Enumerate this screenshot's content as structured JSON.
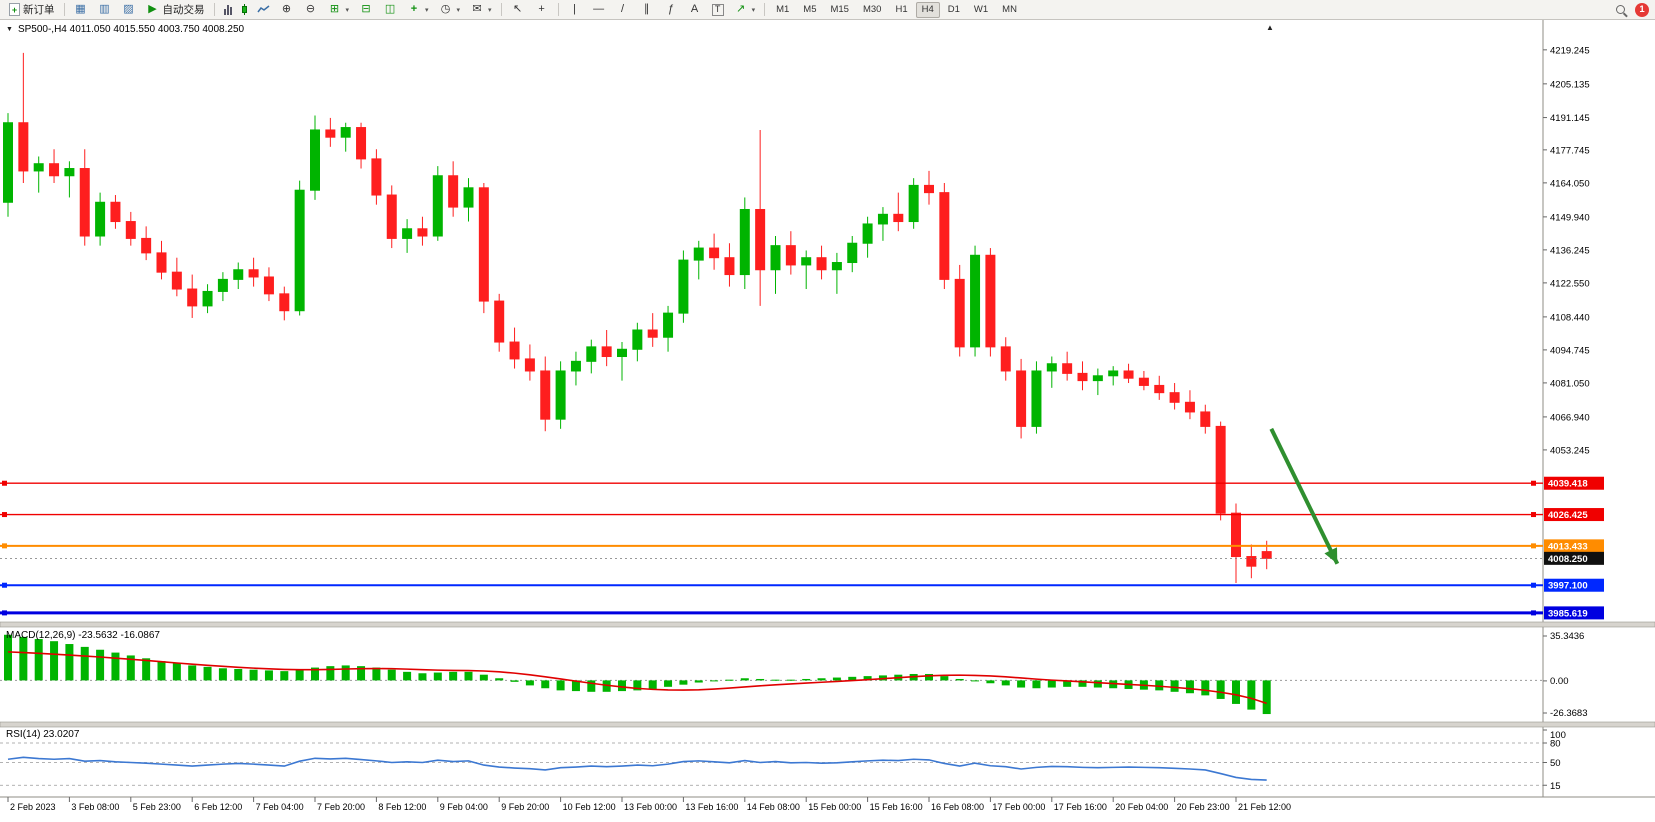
{
  "toolbar": {
    "new_order": "新订单",
    "autotrade": "自动交易",
    "timeframes": [
      "M1",
      "M5",
      "M15",
      "M30",
      "H1",
      "H4",
      "D1",
      "W1",
      "MN"
    ],
    "active_timeframe": "H4",
    "badge": "1"
  },
  "icons": {
    "plus": "+",
    "charts": "▦",
    "profiles": "▥",
    "data_window": "▨",
    "play": "▶",
    "zoom_in": "⊕",
    "zoom_out": "⊖",
    "grid": "⊞",
    "tile_h": "⊟",
    "tile_v": "◫",
    "indicator": "+",
    "clock": "◷",
    "mail": "✉",
    "cursor": "↖",
    "crosshair": "+",
    "vline": "|",
    "hline": "―",
    "trendline": "/",
    "channel": "∥",
    "fibo": "ƒ",
    "text": "A",
    "label": "T",
    "arrow_tool": "↗",
    "caret": "▾",
    "collapse": "▼",
    "end_marker": "▲"
  },
  "chart": {
    "title": "SP500-,H4 4011.050 4015.550 4003.750 4008.250",
    "symbol": "SP500-",
    "period": "H4"
  },
  "macd_panel": {
    "label": "MACD(12,26,9) -23.5632 -16.0867",
    "scale": [
      "35.3436",
      "0.00",
      "-26.3683"
    ]
  },
  "rsi_panel": {
    "label": "RSI(14) 23.0207",
    "scale": [
      "100",
      "80",
      "50",
      "15"
    ]
  },
  "chart_data": {
    "type": "candlestick",
    "title": "SP500- H4",
    "colors": {
      "bull": "#00b400",
      "bear": "#fe1e1e",
      "macd_hist": "#00b400",
      "macd_signal": "#e00000",
      "rsi_line": "#3c78d2",
      "arrow": "#2f8f2f",
      "axis_text": "#000000"
    },
    "ylim": [
      3983.5,
      4222.5
    ],
    "price_axis_ticks": [
      "4219.245",
      "4205.135",
      "4191.145",
      "4177.745",
      "4164.050",
      "4149.940",
      "4136.245",
      "4122.550",
      "4108.440",
      "4094.745",
      "4081.050",
      "4066.940",
      "4053.245"
    ],
    "x_labels": [
      "2 Feb 2023",
      "3 Feb 08:00",
      "5 Feb 23:00",
      "6 Feb 12:00",
      "7 Feb 04:00",
      "7 Feb 20:00",
      "8 Feb 12:00",
      "9 Feb 04:00",
      "9 Feb 20:00",
      "10 Feb 12:00",
      "13 Feb 00:00",
      "13 Feb 16:00",
      "14 Feb 08:00",
      "15 Feb 00:00",
      "15 Feb 16:00",
      "16 Feb 08:00",
      "17 Feb 00:00",
      "17 Feb 16:00",
      "20 Feb 04:00",
      "20 Feb 23:00",
      "21 Feb 12:00"
    ],
    "bars_per_label": 4,
    "candles": [
      [
        4156,
        4193,
        4150,
        4189
      ],
      [
        4189,
        4218,
        4164,
        4169
      ],
      [
        4169,
        4175,
        4160,
        4172
      ],
      [
        4172,
        4178,
        4164,
        4167
      ],
      [
        4167,
        4173,
        4158,
        4170
      ],
      [
        4170,
        4178,
        4138,
        4142
      ],
      [
        4142,
        4160,
        4138,
        4156
      ],
      [
        4156,
        4159,
        4145,
        4148
      ],
      [
        4148,
        4152,
        4138,
        4141
      ],
      [
        4141,
        4146,
        4132,
        4135
      ],
      [
        4135,
        4140,
        4124,
        4127
      ],
      [
        4127,
        4133,
        4117,
        4120
      ],
      [
        4120,
        4126,
        4108,
        4113
      ],
      [
        4113,
        4122,
        4110,
        4119
      ],
      [
        4119,
        4127,
        4115,
        4124
      ],
      [
        4124,
        4131,
        4120,
        4128
      ],
      [
        4128,
        4133,
        4121,
        4125
      ],
      [
        4125,
        4129,
        4115,
        4118
      ],
      [
        4118,
        4121,
        4107,
        4111
      ],
      [
        4111,
        4165,
        4109,
        4161
      ],
      [
        4161,
        4192,
        4157,
        4186
      ],
      [
        4186,
        4191,
        4179,
        4183
      ],
      [
        4183,
        4189,
        4177,
        4187
      ],
      [
        4187,
        4189,
        4170,
        4174
      ],
      [
        4174,
        4178,
        4155,
        4159
      ],
      [
        4159,
        4163,
        4137,
        4141
      ],
      [
        4141,
        4149,
        4135,
        4145
      ],
      [
        4145,
        4150,
        4138,
        4142
      ],
      [
        4142,
        4171,
        4140,
        4167
      ],
      [
        4167,
        4173,
        4150,
        4154
      ],
      [
        4154,
        4166,
        4148,
        4162
      ],
      [
        4162,
        4164,
        4110,
        4115
      ],
      [
        4115,
        4118,
        4094,
        4098
      ],
      [
        4098,
        4104,
        4087,
        4091
      ],
      [
        4091,
        4097,
        4082,
        4086
      ],
      [
        4086,
        4092,
        4061,
        4066
      ],
      [
        4066,
        4090,
        4062,
        4086
      ],
      [
        4086,
        4094,
        4080,
        4090
      ],
      [
        4090,
        4099,
        4085,
        4096
      ],
      [
        4096,
        4103,
        4088,
        4092
      ],
      [
        4092,
        4098,
        4082,
        4095
      ],
      [
        4095,
        4106,
        4090,
        4103
      ],
      [
        4103,
        4110,
        4096,
        4100
      ],
      [
        4100,
        4113,
        4094,
        4110
      ],
      [
        4110,
        4136,
        4106,
        4132
      ],
      [
        4132,
        4140,
        4124,
        4137
      ],
      [
        4137,
        4143,
        4128,
        4133
      ],
      [
        4133,
        4139,
        4121,
        4126
      ],
      [
        4126,
        4158,
        4120,
        4153
      ],
      [
        4153,
        4186,
        4113,
        4128
      ],
      [
        4128,
        4142,
        4118,
        4138
      ],
      [
        4138,
        4144,
        4126,
        4130
      ],
      [
        4130,
        4136,
        4120,
        4133
      ],
      [
        4133,
        4138,
        4124,
        4128
      ],
      [
        4128,
        4135,
        4118,
        4131
      ],
      [
        4131,
        4142,
        4127,
        4139
      ],
      [
        4139,
        4150,
        4133,
        4147
      ],
      [
        4147,
        4154,
        4140,
        4151
      ],
      [
        4151,
        4160,
        4144,
        4148
      ],
      [
        4148,
        4166,
        4145,
        4163
      ],
      [
        4163,
        4169,
        4155,
        4160
      ],
      [
        4160,
        4164,
        4120,
        4124
      ],
      [
        4124,
        4130,
        4092,
        4096
      ],
      [
        4096,
        4138,
        4092,
        4134
      ],
      [
        4134,
        4137,
        4092,
        4096
      ],
      [
        4096,
        4100,
        4082,
        4086
      ],
      [
        4086,
        4091,
        4058,
        4063
      ],
      [
        4063,
        4090,
        4060,
        4086
      ],
      [
        4086,
        4092,
        4079,
        4089
      ],
      [
        4089,
        4094,
        4082,
        4085
      ],
      [
        4085,
        4090,
        4078,
        4082
      ],
      [
        4082,
        4087,
        4076,
        4084
      ],
      [
        4084,
        4088,
        4080,
        4086
      ],
      [
        4086,
        4089,
        4081,
        4083
      ],
      [
        4083,
        4086,
        4078,
        4080
      ],
      [
        4080,
        4084,
        4074,
        4077
      ],
      [
        4077,
        4081,
        4070,
        4073
      ],
      [
        4073,
        4078,
        4066,
        4069
      ],
      [
        4069,
        4072,
        4060,
        4063
      ],
      [
        4063,
        4065,
        4024,
        4027
      ],
      [
        4027,
        4031,
        3998,
        4009
      ],
      [
        4009,
        4014,
        4000,
        4005
      ],
      [
        4011.05,
        4015.55,
        4003.75,
        4008.25
      ]
    ],
    "hlines": [
      {
        "price": 4039.418,
        "label": "4039.418",
        "color": "#f00000",
        "width": 1.4
      },
      {
        "price": 4026.425,
        "label": "4026.425",
        "color": "#f00000",
        "width": 1.4
      },
      {
        "price": 4013.433,
        "label": "4013.433",
        "color": "#ff8c00",
        "width": 2
      },
      {
        "price": 3997.1,
        "label": "3997.100",
        "color": "#0028ff",
        "width": 2
      },
      {
        "price": 3985.619,
        "label": "3985.619",
        "color": "#0000e0",
        "width": 3
      }
    ],
    "current_price": {
      "value": 4008.25,
      "label": "4008.250",
      "bg": "#101010"
    },
    "arrow": {
      "from": {
        "bar": 82.3,
        "price": 4062
      },
      "to": {
        "bar": 86.6,
        "price": 4006
      }
    },
    "macd": {
      "range": [
        -26.3683,
        35.3436
      ],
      "histogram": [
        32,
        30.5,
        29,
        27.5,
        25.5,
        23.5,
        21.5,
        19.5,
        17.5,
        15.5,
        13.5,
        12,
        10.5,
        9.5,
        8.5,
        8,
        7.5,
        7,
        6.5,
        7.5,
        9,
        10,
        10.5,
        10,
        9,
        7.5,
        6,
        5,
        5.5,
        6,
        6,
        4,
        1.5,
        -1,
        -3.5,
        -5.5,
        -7,
        -7.5,
        -8,
        -8,
        -7.5,
        -7,
        -6,
        -4.5,
        -3,
        -1.5,
        -0.5,
        0.5,
        1.5,
        1,
        0.5,
        0.5,
        1,
        1.5,
        2,
        2.5,
        3,
        3.5,
        4,
        4.5,
        4.5,
        3,
        1,
        -0.5,
        -2,
        -3.5,
        -5,
        -5.5,
        -5,
        -4.5,
        -4.5,
        -5,
        -5.5,
        -6,
        -6.5,
        -7,
        -8,
        -9,
        -10.5,
        -13,
        -16.5,
        -20.5,
        -23.6
      ],
      "signal": [
        20,
        19.5,
        19,
        18.4,
        17.8,
        17.1,
        16.4,
        15.6,
        14.8,
        14,
        13.1,
        12.2,
        11.4,
        10.6,
        9.9,
        9.2,
        8.6,
        8.1,
        7.7,
        7.5,
        7.5,
        7.7,
        8,
        8.2,
        8.3,
        8.2,
        7.9,
        7.5,
        7.2,
        7,
        6.9,
        6.6,
        6,
        5.1,
        3.9,
        2.5,
        1,
        -0.5,
        -2,
        -3.4,
        -4.6,
        -5.6,
        -6.3,
        -6.7,
        -6.8,
        -6.6,
        -6.1,
        -5.4,
        -4.6,
        -3.8,
        -3.1,
        -2.5,
        -1.9,
        -1.3,
        -0.7,
        -0.1,
        0.5,
        1.2,
        1.9,
        2.6,
        3.2,
        3.6,
        3.7,
        3.5,
        3.1,
        2.5,
        1.7,
        0.9,
        0.2,
        -0.4,
        -1,
        -1.6,
        -2.2,
        -2.8,
        -3.4,
        -4.1,
        -4.9,
        -5.8,
        -6.9,
        -8.3,
        -10.1,
        -12.6,
        -16.1
      ]
    },
    "rsi": {
      "range": [
        0,
        100
      ],
      "levels": [
        80,
        50,
        15
      ],
      "current": 23.0207,
      "values": [
        55,
        58,
        56,
        55,
        56,
        52,
        53,
        51,
        50,
        49,
        47.5,
        46,
        44.5,
        46,
        47.5,
        48.5,
        47.5,
        46,
        44.5,
        52,
        56.5,
        55.5,
        56.5,
        54.5,
        52.5,
        50,
        51,
        50,
        53.5,
        51.5,
        52.5,
        46,
        43,
        41.5,
        40.5,
        38.5,
        42,
        43,
        44.5,
        43.5,
        44.5,
        46,
        45,
        47.5,
        51.5,
        52.5,
        51,
        49.5,
        53,
        50,
        51.5,
        49.5,
        50,
        49,
        49.5,
        51,
        52.5,
        53.5,
        53,
        55,
        54,
        48.5,
        44.5,
        49,
        45,
        43.5,
        40,
        42.5,
        44,
        43.5,
        42.5,
        42,
        42.5,
        43,
        42.5,
        42,
        41,
        40,
        38.5,
        33,
        27,
        24,
        23
      ]
    }
  }
}
